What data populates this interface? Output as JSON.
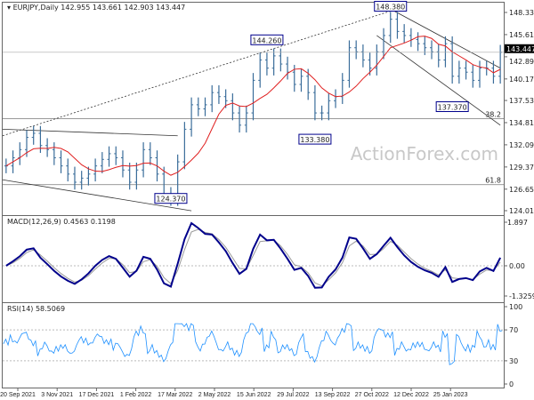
{
  "header": {
    "symbol": "EURJPY,Daily",
    "ohlc": "142.955 143.661 142.903 143.447"
  },
  "watermark": "ActionForex.com",
  "colors": {
    "bars": "#3a6d9a",
    "ma": "#e02020",
    "macd": "#00008b",
    "signal": "#999999",
    "rsi": "#1e90ff",
    "lines": "#333333"
  },
  "chart_data": [
    {
      "type": "ohlc",
      "panel": "price",
      "x": [
        "20 Sep 2021",
        "3 Nov 2021",
        "17 Dec 2021",
        "1 Feb 2022",
        "17 Mar 2022",
        "2 May 2022",
        "15 Jun 2022",
        "29 Jul 2022",
        "13 Sep 2022",
        "27 Oct 2022",
        "12 Dec 2022",
        "25 Jan 2023"
      ],
      "yticks": [
        "148.330",
        "145.610",
        "142.890",
        "140.170",
        "137.530",
        "134.810",
        "132.090",
        "129.370",
        "126.650",
        "124.010"
      ],
      "ylim": [
        124.01,
        148.33
      ],
      "last_price": "143.447",
      "weekly_close": [
        129.5,
        130.5,
        131.5,
        133,
        133.5,
        132,
        131.5,
        130.5,
        129.5,
        128.5,
        127.5,
        128,
        128.5,
        129.5,
        130.3,
        131,
        130.5,
        129,
        127.5,
        129,
        131.5,
        130.5,
        128.5,
        126,
        125.5,
        130,
        134,
        137,
        136.5,
        137,
        138.5,
        138,
        137.5,
        136,
        134.5,
        136,
        140,
        142.5,
        141.5,
        143,
        142,
        141,
        139.5,
        140.5,
        138.5,
        136,
        136,
        137.5,
        138,
        140,
        144,
        143.5,
        142.5,
        141.5,
        143.5,
        145.5,
        147.5,
        146,
        145.5,
        145,
        144.5,
        144,
        143.5,
        142.5,
        144.5,
        140.5,
        141.5,
        141,
        140,
        141.5,
        141.5,
        140.5,
        143.447
      ],
      "annotations": [
        {
          "label": "148.380",
          "week": 56,
          "price": 148.38
        },
        {
          "label": "144.260",
          "week": 38,
          "price": 144.26
        },
        {
          "label": "137.370",
          "week": 65,
          "price": 137.37
        },
        {
          "label": "133.380",
          "week": 45,
          "price": 133.38
        },
        {
          "label": "124.370",
          "week": 24,
          "price": 124.37
        }
      ],
      "fib_levels": [
        {
          "label": "38.2",
          "price": 135.3
        },
        {
          "label": "61.8",
          "price": 127.2
        }
      ],
      "series": [
        {
          "name": "",
          "type": "moving-average"
        }
      ]
    },
    {
      "type": "line",
      "panel": "macd",
      "title": "MACD(12,26,9) 0.4563 0.1198",
      "yticks": [
        "1.897",
        "0.00",
        "-1.3259"
      ],
      "ylim": [
        -1.3259,
        1.897
      ]
    },
    {
      "type": "line",
      "panel": "rsi",
      "title": "RSI(14) 58.5069",
      "yticks": [
        "100",
        "70",
        "30",
        "0"
      ],
      "ylim": [
        0,
        100
      ]
    }
  ]
}
